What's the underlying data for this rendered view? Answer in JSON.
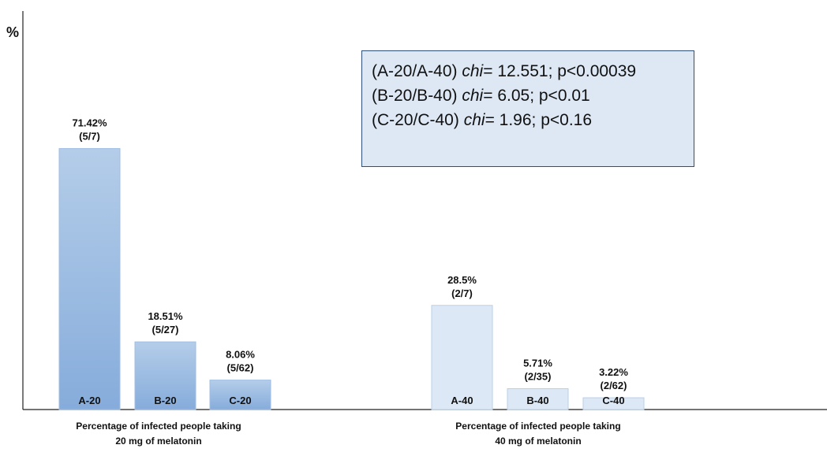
{
  "chart_data": {
    "type": "bar",
    "ylabel": "%",
    "ylim": [
      0,
      100
    ],
    "grid": false,
    "groups": [
      {
        "label_line1": "Percentage of infected people taking",
        "label_line2": "20 mg of melatonin",
        "bars": [
          {
            "name": "A-20",
            "value": 71.42,
            "value_label": "71.42%",
            "fraction_label": "(5/7)"
          },
          {
            "name": "B-20",
            "value": 18.51,
            "value_label": "18.51%",
            "fraction_label": "(5/27)"
          },
          {
            "name": "C-20",
            "value": 8.06,
            "value_label": "8.06%",
            "fraction_label": "(5/62)"
          }
        ]
      },
      {
        "label_line1": "Percentage of infected people taking",
        "label_line2": "40 mg of melatonin",
        "bars": [
          {
            "name": "A-40",
            "value": 28.5,
            "value_label": "28.5%",
            "fraction_label": "(2/7)"
          },
          {
            "name": "B-40",
            "value": 5.71,
            "value_label": "5.71%",
            "fraction_label": "(2/35)"
          },
          {
            "name": "C-40",
            "value": 3.22,
            "value_label": "3.22%",
            "fraction_label": "(2/62)"
          }
        ]
      }
    ],
    "colors": {
      "group1_top": "#b4cde9",
      "group1_bottom": "#86acdb",
      "group2_fill": "#dce8f5",
      "group1_border": "#9fbde3",
      "group2_border": "#b8cfea"
    }
  },
  "stats_box": {
    "lines": [
      {
        "pair": "(A-20/A-40) ",
        "stat": "chi",
        "rest": "= 12.551; p<0.00039"
      },
      {
        "pair": "(B-20/B-40) ",
        "stat": "chi",
        "rest": "= 6.05; p<0.01"
      },
      {
        "pair": "(C-20/C-40) ",
        "stat": "chi",
        "rest": "= 1.96; p<0.16"
      }
    ]
  }
}
